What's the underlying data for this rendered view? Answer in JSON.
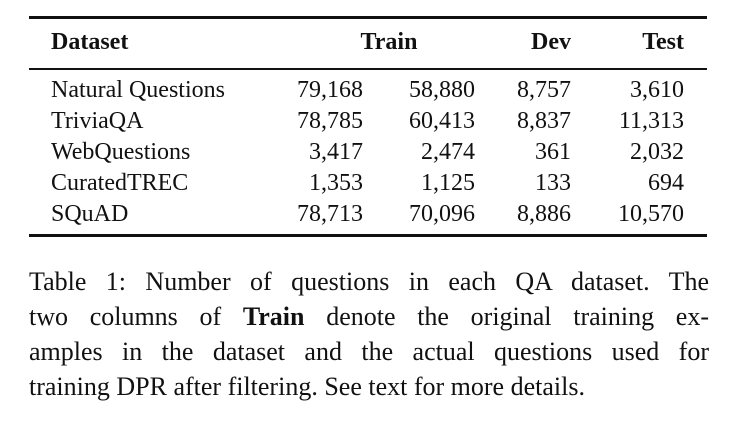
{
  "table": {
    "headers": {
      "dataset": "Dataset",
      "train": "Train",
      "dev": "Dev",
      "test": "Test"
    },
    "rows": [
      {
        "dataset": "Natural Questions",
        "train_original": "79,168",
        "train_filtered": "58,880",
        "dev": "8,757",
        "test": "3,610"
      },
      {
        "dataset": "TriviaQA",
        "train_original": "78,785",
        "train_filtered": "60,413",
        "dev": "8,837",
        "test": "11,313"
      },
      {
        "dataset": "WebQuestions",
        "train_original": "3,417",
        "train_filtered": "2,474",
        "dev": "361",
        "test": "2,032"
      },
      {
        "dataset": "CuratedTREC",
        "train_original": "1,353",
        "train_filtered": "1,125",
        "dev": "133",
        "test": "694"
      },
      {
        "dataset": "SQuAD",
        "train_original": "78,713",
        "train_filtered": "70,096",
        "dev": "8,886",
        "test": "10,570"
      }
    ]
  },
  "caption": {
    "line1": "Table 1: Number of questions in each QA dataset. The",
    "line2_pre": "two columns of ",
    "line2_bold": "Train",
    "line2_post": " denote the original training ex-",
    "line3": "amples in the dataset and the actual questions used for",
    "line4": "training DPR after filtering. See text for more details."
  }
}
